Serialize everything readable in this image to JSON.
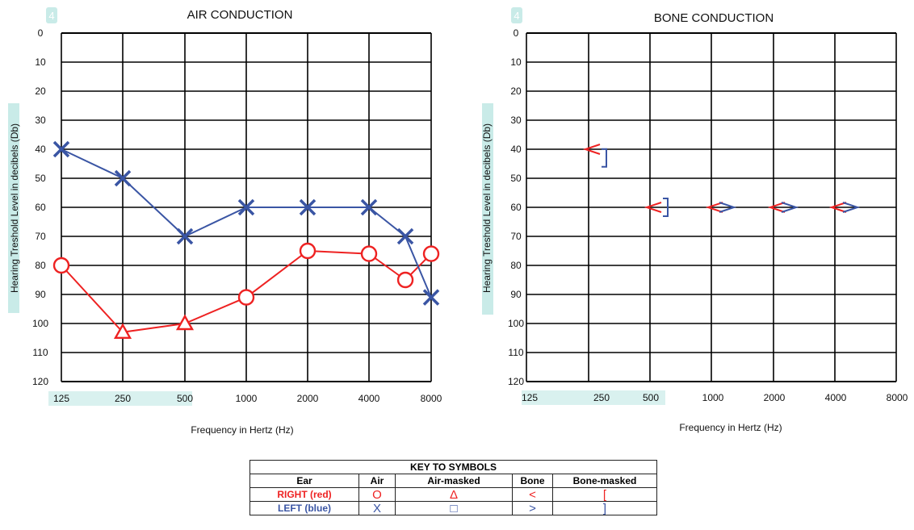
{
  "chart_data": [
    {
      "type": "line",
      "title": "AIR CONDUCTION",
      "badge": "4",
      "xlabel": "Frequency in Hertz (Hz)",
      "ylabel": "Hearing Treshold Level in decibels (Db)",
      "x_ticks": [
        "125",
        "250",
        "500",
        "1000",
        "2000",
        "4000",
        "8000"
      ],
      "y_ticks": [
        "0",
        "10",
        "20",
        "30",
        "40",
        "50",
        "60",
        "70",
        "80",
        "90",
        "100",
        "110",
        "120"
      ],
      "ylim": [
        0,
        120
      ],
      "y_inverted": true,
      "series": [
        {
          "color": "#ee2222",
          "points": [
            {
              "x": "125",
              "y": 80,
              "symbol": "circle"
            },
            {
              "x": "250",
              "y": 103,
              "symbol": "triangle"
            },
            {
              "x": "500",
              "y": 100,
              "symbol": "triangle"
            },
            {
              "x": "1000",
              "y": 91,
              "symbol": "circle"
            },
            {
              "x": "2000",
              "y": 75,
              "symbol": "circle"
            },
            {
              "x": "4000",
              "y": 76,
              "symbol": "circle"
            },
            {
              "x": "6000",
              "y": 85,
              "symbol": "circle"
            },
            {
              "x": "8000",
              "y": 76,
              "symbol": "circle"
            }
          ]
        },
        {
          "color": "#3a55a4",
          "points": [
            {
              "x": "125",
              "y": 40,
              "symbol": "cross"
            },
            {
              "x": "250",
              "y": 50,
              "symbol": "cross"
            },
            {
              "x": "500",
              "y": 70,
              "symbol": "cross"
            },
            {
              "x": "1000",
              "y": 60,
              "symbol": "cross"
            },
            {
              "x": "2000",
              "y": 60,
              "symbol": "cross"
            },
            {
              "x": "4000",
              "y": 60,
              "symbol": "cross"
            },
            {
              "x": "6000",
              "y": 70,
              "symbol": "cross"
            },
            {
              "x": "8000",
              "y": 91,
              "symbol": "cross"
            }
          ]
        }
      ]
    },
    {
      "type": "scatter",
      "title": "BONE CONDUCTION",
      "badge": "4",
      "xlabel": "Frequency in Hertz (Hz)",
      "ylabel": "Hearing Treshold Level in decibels (Db)",
      "x_ticks": [
        "125",
        "250",
        "500",
        "1000",
        "2000",
        "4000",
        "8000"
      ],
      "y_ticks": [
        "0",
        "10",
        "20",
        "30",
        "40",
        "50",
        "60",
        "70",
        "80",
        "90",
        "100",
        "110",
        "120"
      ],
      "ylim": [
        0,
        120
      ],
      "y_inverted": true,
      "series": [
        {
          "color": "#ee2222",
          "points": [
            {
              "x": "250",
              "y": 40,
              "symbol": "less-than"
            },
            {
              "x": "500",
              "y": 60,
              "symbol": "less-than"
            },
            {
              "x": "1000",
              "y": 60,
              "symbol": "less-than"
            },
            {
              "x": "2000",
              "y": 60,
              "symbol": "less-than"
            },
            {
              "x": "4000",
              "y": 60,
              "symbol": "less-than"
            }
          ]
        },
        {
          "color": "#3a55a4",
          "points": [
            {
              "x": "250",
              "y": 43,
              "symbol": "right-bracket"
            },
            {
              "x": "500",
              "y": 60,
              "symbol": "right-bracket"
            },
            {
              "x": "1000",
              "y": 60,
              "symbol": "greater-than"
            },
            {
              "x": "2000",
              "y": 60,
              "symbol": "greater-than"
            },
            {
              "x": "4000",
              "y": 60,
              "symbol": "greater-than"
            }
          ]
        }
      ]
    }
  ],
  "key": {
    "title": "KEY TO SYMBOLS",
    "headers": [
      "Ear",
      "Air",
      "Air-masked",
      "Bone",
      "Bone-masked"
    ],
    "rows": [
      {
        "ear": "RIGHT (red)",
        "air": "O",
        "air_masked": "Δ",
        "bone": "<",
        "bone_masked": "["
      },
      {
        "ear": "LEFT (blue)",
        "air": "X",
        "air_masked": "□",
        "bone": ">",
        "bone_masked": "]"
      }
    ]
  }
}
